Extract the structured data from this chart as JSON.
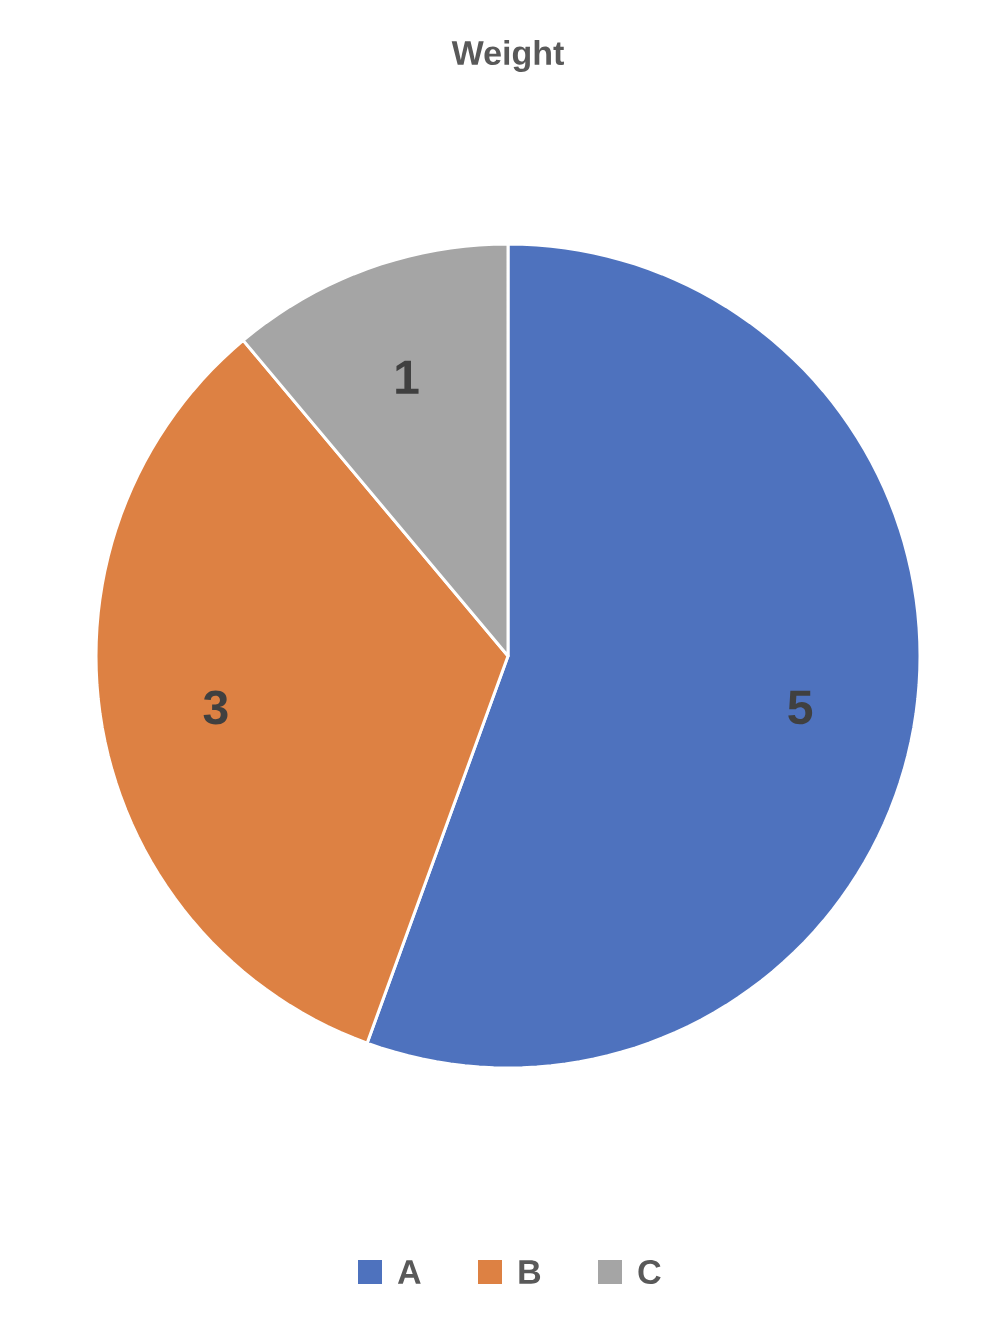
{
  "chart_data": {
    "type": "pie",
    "title": "Weight",
    "categories": [
      "A",
      "B",
      "C"
    ],
    "values": [
      5,
      3,
      1
    ],
    "colors": [
      "#4e72be",
      "#dd8143",
      "#a5a5a5"
    ],
    "data_labels": true,
    "legend": "bottom"
  }
}
